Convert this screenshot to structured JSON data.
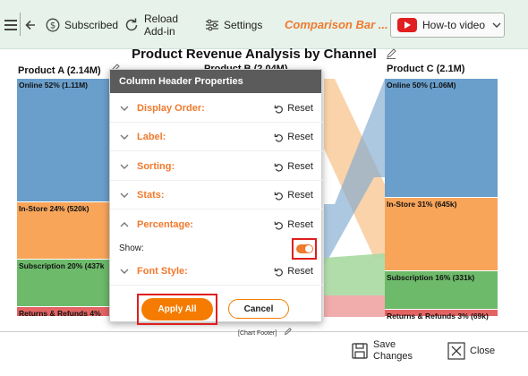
{
  "toolbar": {
    "subscribed_label": "Subscribed",
    "reload_label_line1": "Reload",
    "reload_label_line2": "Add-in",
    "settings_label": "Settings",
    "brand_label": "Comparison Bar ...",
    "howto_label": "How-to video"
  },
  "chart_data": {
    "type": "bar",
    "title": "Product Revenue Analysis by Channel",
    "footer": "[Chart Footer]",
    "columns": [
      {
        "header": "Product A (2.14M)",
        "segments": [
          {
            "label": "Online 52% (1.11M)",
            "percent": 52,
            "color": "#6a9fcc"
          },
          {
            "label": "In-Store 24% (520k)",
            "percent": 24,
            "color": "#f8a55a"
          },
          {
            "label": "Subscription 20% (437k",
            "percent": 20,
            "color": "#6dba6a"
          },
          {
            "label": "Returns & Refunds 4%",
            "percent": 4,
            "color": "#e46464"
          }
        ]
      },
      {
        "header": "Product B (2.04M)",
        "segments": []
      },
      {
        "header": "Product C (2.1M)",
        "segments": [
          {
            "label": "Online 50% (1.06M)",
            "percent": 50,
            "color": "#6a9fcc"
          },
          {
            "label": "In-Store 31% (645k)",
            "percent": 31,
            "color": "#f8a55a"
          },
          {
            "label": "Subscription 16% (331k)",
            "percent": 16,
            "color": "#6dba6a"
          },
          {
            "label": "Returns & Refunds 3% (69k)",
            "percent": 3,
            "color": "#e46464"
          }
        ]
      }
    ]
  },
  "dialog": {
    "title": "Column Header Properties",
    "reset_label": "Reset",
    "rows": [
      {
        "label": "Display Order:",
        "expanded": false
      },
      {
        "label": "Label:",
        "expanded": false
      },
      {
        "label": "Sorting:",
        "expanded": false
      },
      {
        "label": "Stats:",
        "expanded": false
      },
      {
        "label": "Percentage:",
        "expanded": true
      },
      {
        "label": "Font Style:",
        "expanded": false
      }
    ],
    "show_label": "Show:",
    "show_on": true,
    "apply_label": "Apply All",
    "cancel_label": "Cancel"
  },
  "actions": {
    "save_line1": "Save",
    "save_line2": "Changes",
    "close_label": "Close"
  }
}
